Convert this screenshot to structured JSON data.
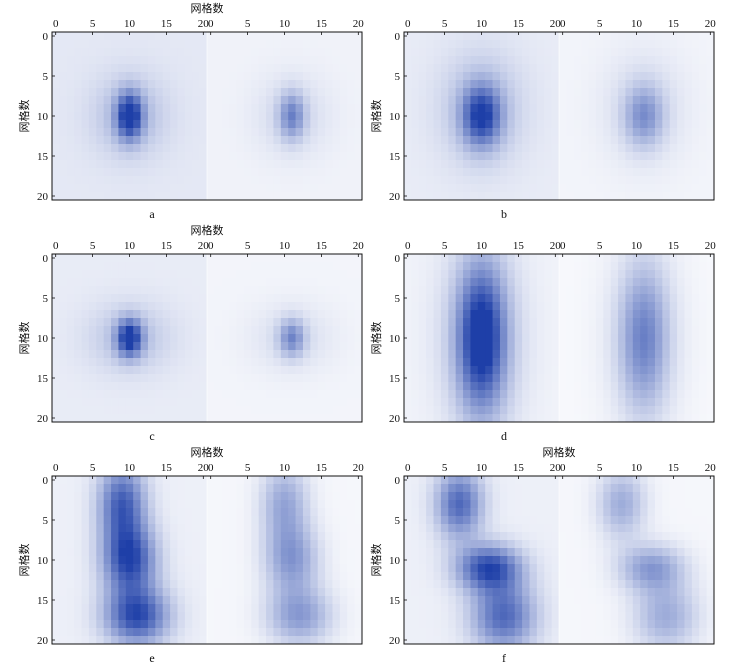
{
  "chart_data": [
    {
      "type": "heatmap",
      "panel_label": "a",
      "xlabel": "网格数",
      "ylabel": "网格数",
      "x_ticks": [
        "0",
        "5",
        "10",
        "15",
        "20"
      ],
      "y_ticks": [
        "0",
        "5",
        "10",
        "15",
        "20"
      ],
      "xlim": [
        0,
        21
      ],
      "ylim": [
        0,
        20
      ],
      "grid_size": [
        21,
        21
      ],
      "colormap": [
        "#ffffff",
        "#1e3fa8"
      ],
      "blobs": [
        {
          "cx": 10,
          "cy": 10,
          "sx": 1.2,
          "sy": 2.0,
          "amp": 0.85
        },
        {
          "cx": 10,
          "cy": 10,
          "sx": 3.5,
          "sy": 3.5,
          "amp": 0.25
        }
      ],
      "base": 0.12
    },
    {
      "type": "heatmap",
      "panel_label": "b",
      "xlabel": "",
      "ylabel": "网格数",
      "x_ticks": [
        "0",
        "5",
        "10",
        "15",
        "20"
      ],
      "y_ticks": [
        "0",
        "5",
        "10",
        "15",
        "20"
      ],
      "xlim": [
        0,
        21
      ],
      "ylim": [
        0,
        20
      ],
      "grid_size": [
        21,
        21
      ],
      "colormap": [
        "#ffffff",
        "#1e3fa8"
      ],
      "blobs": [
        {
          "cx": 10,
          "cy": 10,
          "sx": 1.8,
          "sy": 2.6,
          "amp": 0.75
        },
        {
          "cx": 10,
          "cy": 9,
          "sx": 4,
          "sy": 5,
          "amp": 0.25
        }
      ],
      "base": 0.1
    },
    {
      "type": "heatmap",
      "panel_label": "c",
      "xlabel": "网格数",
      "ylabel": "网格数",
      "x_ticks": [
        "0",
        "5",
        "10",
        "15",
        "20"
      ],
      "y_ticks": [
        "0",
        "5",
        "10",
        "15",
        "20"
      ],
      "xlim": [
        0,
        21
      ],
      "ylim": [
        0,
        20
      ],
      "grid_size": [
        21,
        21
      ],
      "colormap": [
        "#ffffff",
        "#1e3fa8"
      ],
      "blobs": [
        {
          "cx": 10,
          "cy": 10,
          "sx": 1.2,
          "sy": 1.6,
          "amp": 0.85
        },
        {
          "cx": 10,
          "cy": 10,
          "sx": 4,
          "sy": 3,
          "amp": 0.22
        }
      ],
      "base": 0.1
    },
    {
      "type": "heatmap",
      "panel_label": "d",
      "xlabel": "",
      "ylabel": "网格数",
      "x_ticks": [
        "0",
        "5",
        "10",
        "15",
        "20"
      ],
      "y_ticks": [
        "0",
        "5",
        "10",
        "15",
        "20"
      ],
      "xlim": [
        0,
        21
      ],
      "ylim": [
        0,
        20
      ],
      "grid_size": [
        21,
        21
      ],
      "colormap": [
        "#ffffff",
        "#1e3fa8"
      ],
      "blobs": [
        {
          "cx": 10,
          "cy": 10,
          "sx": 2.2,
          "sy": 6.0,
          "amp": 0.9
        },
        {
          "cx": 10,
          "cy": 10,
          "sx": 4,
          "sy": 9,
          "amp": 0.25
        }
      ],
      "base": 0.06
    },
    {
      "type": "heatmap",
      "panel_label": "e",
      "xlabel": "网格数",
      "ylabel": "网格数",
      "x_ticks": [
        "0",
        "5",
        "10",
        "15",
        "20"
      ],
      "y_ticks": [
        "0",
        "5",
        "10",
        "15",
        "20"
      ],
      "xlim": [
        0,
        21
      ],
      "ylim": [
        0,
        20
      ],
      "grid_size": [
        21,
        21
      ],
      "colormap": [
        "#ffffff",
        "#1e3fa8"
      ],
      "blobs": [
        {
          "cx": 9,
          "cy": 3,
          "sx": 2.2,
          "sy": 3.5,
          "amp": 0.75
        },
        {
          "cx": 10,
          "cy": 10,
          "sx": 2.5,
          "sy": 3,
          "amp": 0.85
        },
        {
          "cx": 11,
          "cy": 17,
          "sx": 3,
          "sy": 2.5,
          "amp": 0.85
        }
      ],
      "base": 0.08
    },
    {
      "type": "heatmap",
      "panel_label": "f",
      "xlabel": "网格数",
      "ylabel": "网格数",
      "x_ticks": [
        "0",
        "5",
        "10",
        "15",
        "20"
      ],
      "y_ticks": [
        "0",
        "5",
        "10",
        "15",
        "20"
      ],
      "xlim": [
        0,
        21
      ],
      "ylim": [
        0,
        20
      ],
      "grid_size": [
        21,
        21
      ],
      "colormap": [
        "#ffffff",
        "#1e3fa8"
      ],
      "blobs": [
        {
          "cx": 7,
          "cy": 3,
          "sx": 2.2,
          "sy": 3,
          "amp": 0.7
        },
        {
          "cx": 11,
          "cy": 11,
          "sx": 3,
          "sy": 2,
          "amp": 0.85
        },
        {
          "cx": 13,
          "cy": 17,
          "sx": 3,
          "sy": 3,
          "amp": 0.7
        }
      ],
      "base": 0.08
    }
  ]
}
